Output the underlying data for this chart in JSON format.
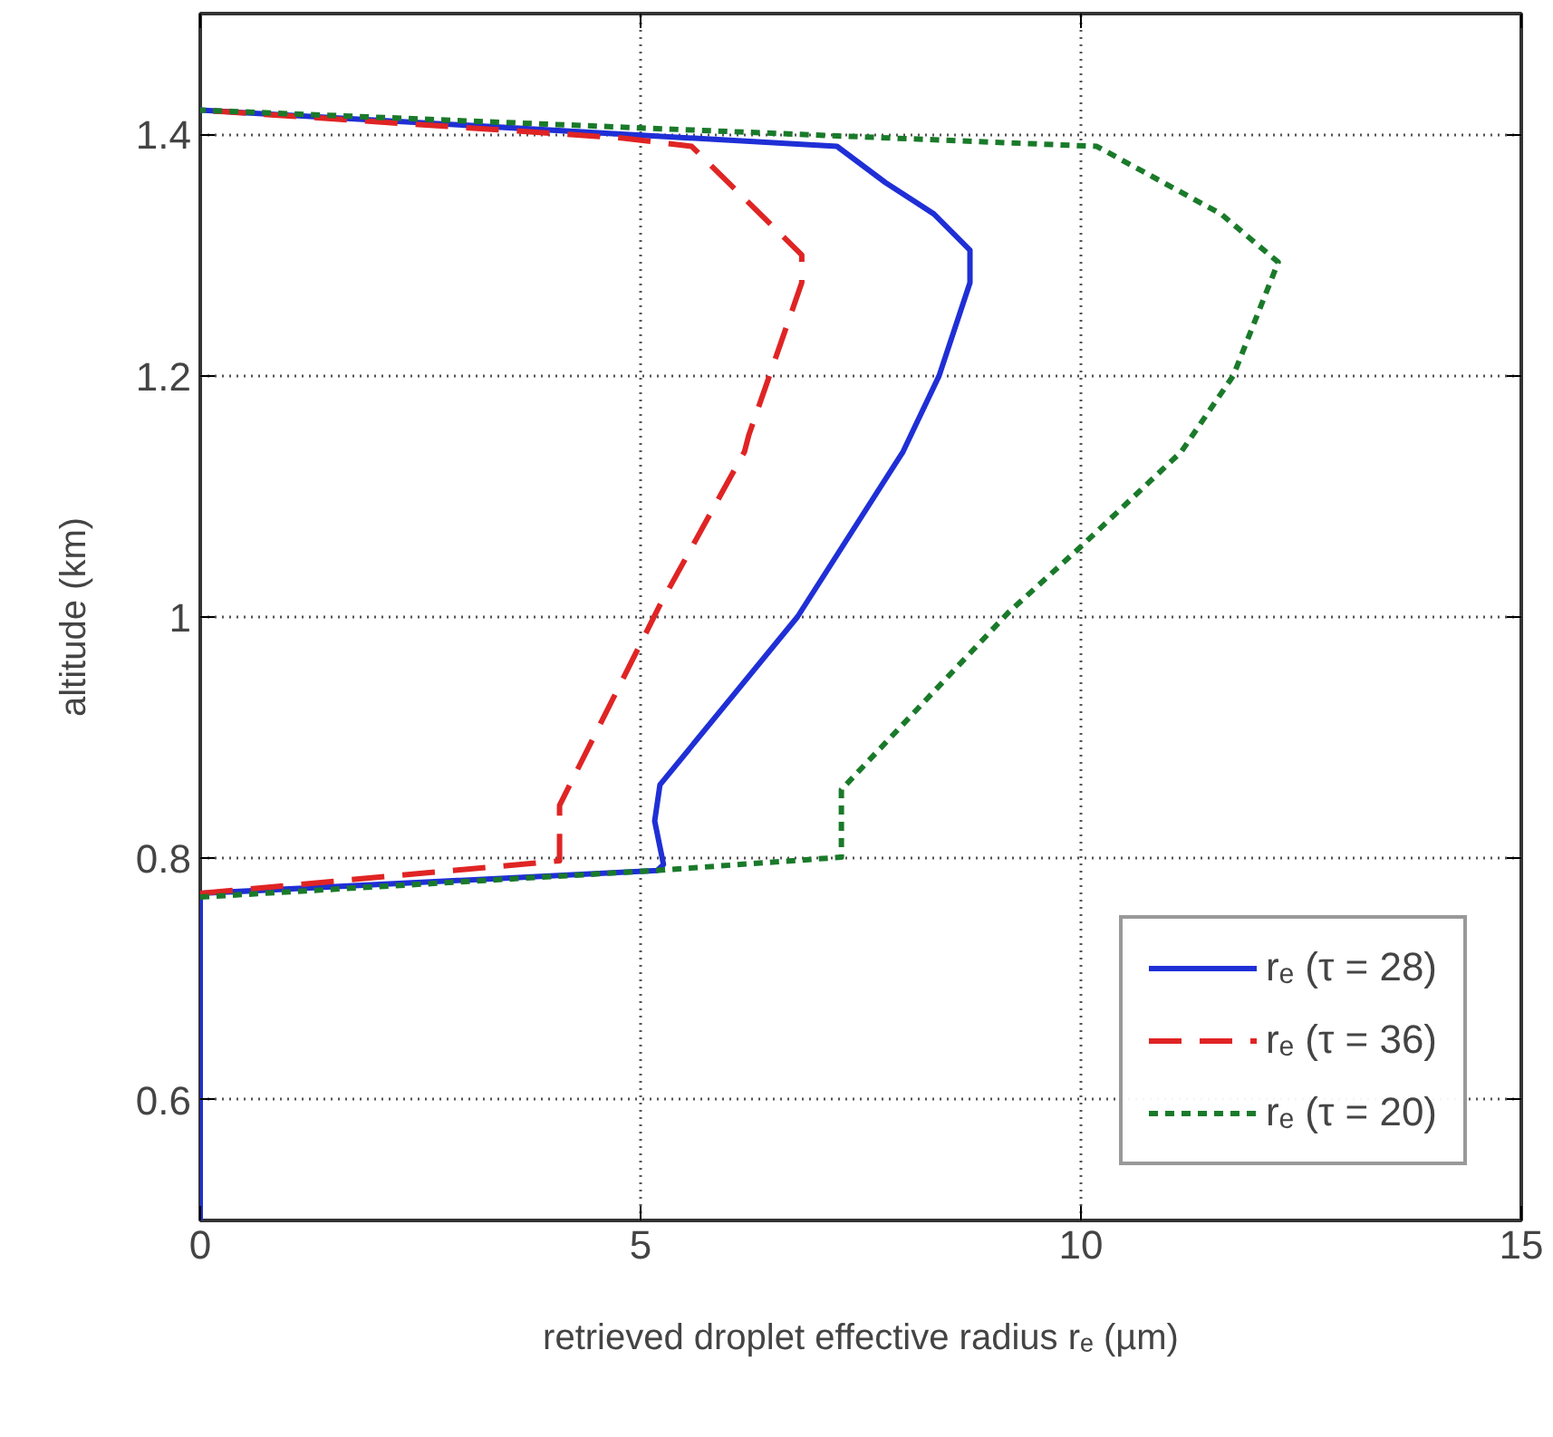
{
  "chart_data": {
    "type": "line",
    "xlabel": "retrieved droplet effective radius rₑ (µm)",
    "ylabel": "altitude (km)",
    "xlim": [
      0,
      15
    ],
    "ylim": [
      0.5,
      1.5
    ],
    "xticks": [
      0,
      5,
      10,
      15
    ],
    "yticks": [
      0.6,
      0.8,
      1,
      1.2,
      1.4
    ],
    "grid": true,
    "legend": "bottom right",
    "marker": "none",
    "series": [
      {
        "name": "rₑ (τ = 28)",
        "color": "#1f2fd6",
        "line_style": "solid",
        "x": [
          0,
          0,
          5.19,
          5.26,
          5.16,
          5.22,
          6.78,
          7.98,
          8.39,
          8.74,
          8.74,
          8.33,
          7.78,
          7.23,
          0
        ],
        "values": [
          0.5,
          0.771,
          0.79,
          0.795,
          0.831,
          0.861,
          1.0,
          1.137,
          1.2,
          1.277,
          1.304,
          1.334,
          1.36,
          1.39,
          1.42
        ]
      },
      {
        "name": "rₑ (τ = 36)",
        "color": "#e02424",
        "line_style": "dashed",
        "x": [
          0,
          4.08,
          4.08,
          5.22,
          6.18,
          6.23,
          6.83,
          6.83,
          5.58,
          4.78,
          0
        ],
        "values": [
          0.771,
          0.798,
          0.844,
          1.01,
          1.137,
          1.151,
          1.277,
          1.3,
          1.39,
          1.397,
          1.42
        ]
      },
      {
        "name": "rₑ (τ = 20)",
        "color": "#1a7a2a",
        "line_style": "dotted",
        "x": [
          0,
          5.18,
          7.28,
          7.28,
          9.18,
          9.98,
          11.14,
          11.73,
          12.24,
          11.59,
          10.18,
          0
        ],
        "values": [
          0.768,
          0.79,
          0.801,
          0.857,
          1.004,
          1.057,
          1.137,
          1.2,
          1.294,
          1.334,
          1.39,
          1.42
        ]
      }
    ]
  }
}
